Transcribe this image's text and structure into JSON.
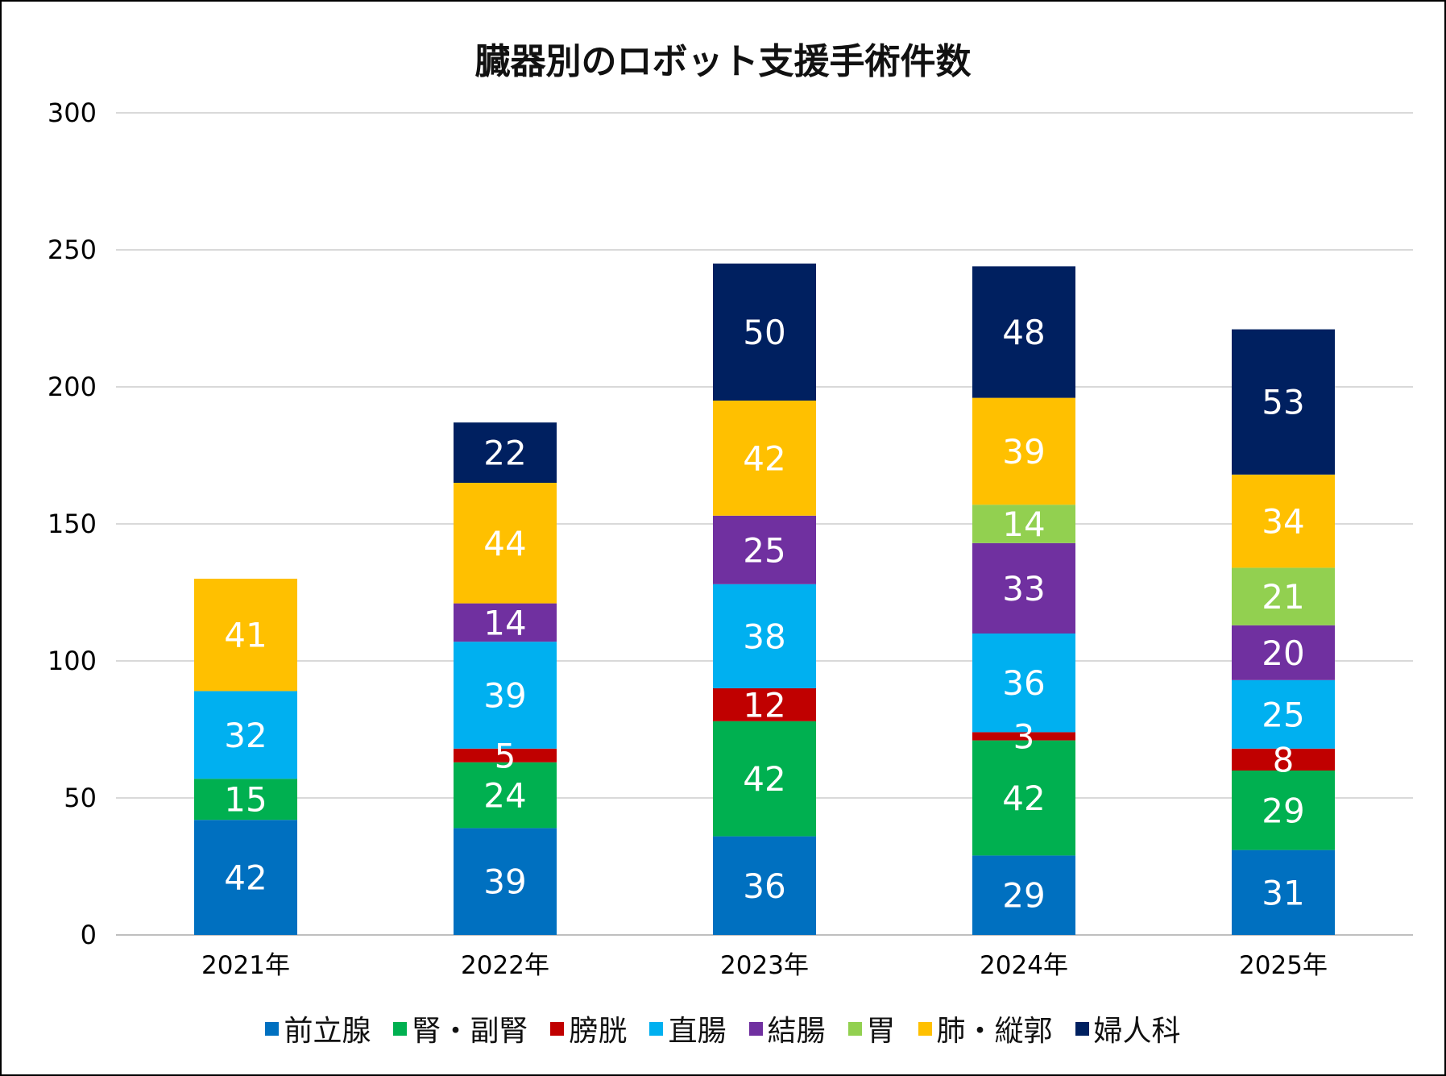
{
  "chart_data": {
    "type": "bar",
    "stacked": true,
    "title": "臓器別のロボット支援手術件数",
    "categories": [
      "2021年",
      "2022年",
      "2023年",
      "2024年",
      "2025年"
    ],
    "ylim": [
      0,
      300
    ],
    "yticks": [
      0,
      50,
      100,
      150,
      200,
      250,
      300
    ],
    "grid": true,
    "legend_position": "bottom",
    "series": [
      {
        "name": "前立腺",
        "color": "#0070C0",
        "values": [
          42,
          39,
          36,
          29,
          31
        ]
      },
      {
        "name": "腎・副腎",
        "color": "#00B050",
        "values": [
          15,
          24,
          42,
          42,
          29
        ]
      },
      {
        "name": "膀胱",
        "color": "#C00000",
        "values": [
          0,
          5,
          12,
          3,
          8
        ]
      },
      {
        "name": "直腸",
        "color": "#00B0F0",
        "values": [
          32,
          39,
          38,
          36,
          25
        ]
      },
      {
        "name": "結腸",
        "color": "#7030A0",
        "values": [
          0,
          14,
          25,
          33,
          20
        ]
      },
      {
        "name": "胃",
        "color": "#92D050",
        "values": [
          0,
          0,
          0,
          14,
          21
        ]
      },
      {
        "name": "肺・縦郭",
        "color": "#FFC000",
        "values": [
          41,
          44,
          42,
          39,
          34
        ]
      },
      {
        "name": "婦人科",
        "color": "#002060",
        "values": [
          0,
          22,
          50,
          48,
          53
        ]
      }
    ]
  }
}
